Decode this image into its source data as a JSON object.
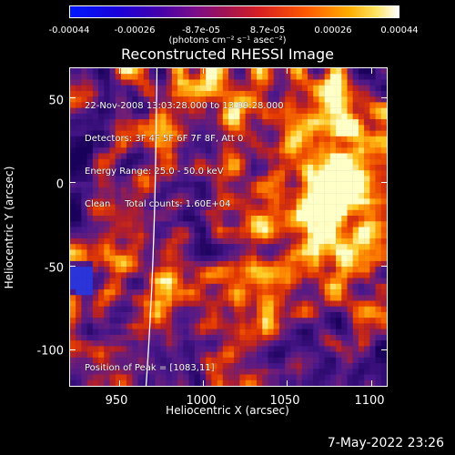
{
  "colorbar": {
    "ticks": [
      "-0.00044",
      "-0.00026",
      "-8.7e-05",
      "8.7e-05",
      "0.00026",
      "0.00044"
    ],
    "units_label": "(photons cm⁻² s⁻¹ asec⁻²)"
  },
  "plot": {
    "title": "Reconstructed RHESSI Image",
    "info": {
      "time_range": "22-Nov-2008 13:03:28.000 to 13:09:28.000",
      "detectors": "Detectors: 3F 4F 5F 6F 7F 8F, Att 0",
      "energy_range": "Energy Range: 25.0 - 50.0 keV",
      "method_counts": "Clean     Total counts: 1.60E+04"
    },
    "peak_position": "Position of Peak = [1083,11]",
    "x_axis_title": "Heliocentric X (arcsec)",
    "y_axis_title": "Heliocentric Y (arcsec)",
    "x_ticks": [
      "950",
      "1000",
      "1050",
      "1100"
    ],
    "y_ticks": [
      "50",
      "0",
      "-50",
      "-100"
    ],
    "x_tick_values": [
      950,
      1000,
      1050,
      1100
    ],
    "y_tick_values": [
      50,
      0,
      -50,
      -100
    ]
  },
  "footer": {
    "date": "7-May-2022 23:26"
  }
}
